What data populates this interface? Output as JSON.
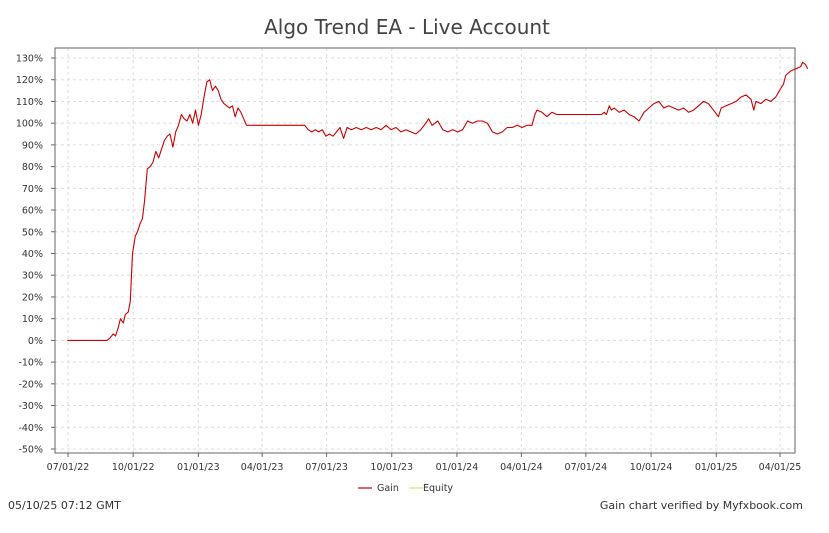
{
  "chart_data": {
    "type": "line",
    "title": "Algo Trend EA - Live Account",
    "xlabel": "",
    "ylabel": "",
    "ylim": [
      -50,
      130
    ],
    "y_ticks": [
      "130%",
      "120%",
      "110%",
      "100%",
      "90%",
      "80%",
      "70%",
      "60%",
      "50%",
      "40%",
      "30%",
      "20%",
      "10%",
      "0%",
      "-10%",
      "-20%",
      "-30%",
      "-40%",
      "-50%"
    ],
    "x_ticks": [
      "07/01/22",
      "10/01/22",
      "01/01/23",
      "04/01/23",
      "07/01/23",
      "10/01/23",
      "01/01/24",
      "04/01/24",
      "07/01/24",
      "10/01/24",
      "01/01/25",
      "04/01/25"
    ],
    "grid": true,
    "legend_position": "bottom-center",
    "series": [
      {
        "name": "Gain",
        "color": "#cc0000",
        "points": [
          [
            "2022-06-30",
            0
          ],
          [
            "2022-08-25",
            0
          ],
          [
            "2022-08-29",
            1
          ],
          [
            "2022-09-03",
            3
          ],
          [
            "2022-09-06",
            2
          ],
          [
            "2022-09-10",
            6
          ],
          [
            "2022-09-13",
            10
          ],
          [
            "2022-09-17",
            8
          ],
          [
            "2022-09-20",
            12
          ],
          [
            "2022-09-24",
            13
          ],
          [
            "2022-09-27",
            18
          ],
          [
            "2022-09-30",
            40
          ],
          [
            "2022-10-04",
            48
          ],
          [
            "2022-10-07",
            50
          ],
          [
            "2022-10-11",
            54
          ],
          [
            "2022-10-14",
            56
          ],
          [
            "2022-10-17",
            64
          ],
          [
            "2022-10-21",
            79
          ],
          [
            "2022-10-25",
            80
          ],
          [
            "2022-10-29",
            82
          ],
          [
            "2022-11-02",
            87
          ],
          [
            "2022-11-06",
            84
          ],
          [
            "2022-11-10",
            88
          ],
          [
            "2022-11-14",
            92
          ],
          [
            "2022-11-18",
            94
          ],
          [
            "2022-11-22",
            95
          ],
          [
            "2022-11-26",
            89
          ],
          [
            "2022-11-30",
            96
          ],
          [
            "2022-12-04",
            99
          ],
          [
            "2022-12-08",
            104
          ],
          [
            "2022-12-12",
            102
          ],
          [
            "2022-12-16",
            101
          ],
          [
            "2022-12-20",
            104
          ],
          [
            "2022-12-24",
            100
          ],
          [
            "2022-12-28",
            106
          ],
          [
            "2023-01-01",
            99
          ],
          [
            "2023-01-05",
            104
          ],
          [
            "2023-01-09",
            112
          ],
          [
            "2023-01-13",
            119
          ],
          [
            "2023-01-17",
            120
          ],
          [
            "2023-01-21",
            115
          ],
          [
            "2023-01-25",
            117
          ],
          [
            "2023-01-29",
            115
          ],
          [
            "2023-02-02",
            111
          ],
          [
            "2023-02-06",
            109
          ],
          [
            "2023-02-10",
            108
          ],
          [
            "2023-02-14",
            107
          ],
          [
            "2023-02-18",
            108
          ],
          [
            "2023-02-22",
            103
          ],
          [
            "2023-02-26",
            107
          ],
          [
            "2023-03-02",
            105
          ],
          [
            "2023-03-06",
            102
          ],
          [
            "2023-03-10",
            99
          ],
          [
            "2023-03-14",
            99
          ],
          [
            "2023-05-31",
            99
          ],
          [
            "2023-06-05",
            97
          ],
          [
            "2023-06-10",
            96
          ],
          [
            "2023-06-15",
            97
          ],
          [
            "2023-06-20",
            96
          ],
          [
            "2023-06-25",
            97
          ],
          [
            "2023-06-30",
            94
          ],
          [
            "2023-07-05",
            95
          ],
          [
            "2023-07-10",
            94
          ],
          [
            "2023-07-15",
            96
          ],
          [
            "2023-07-20",
            98
          ],
          [
            "2023-07-25",
            93
          ],
          [
            "2023-07-30",
            98
          ],
          [
            "2023-08-05",
            97
          ],
          [
            "2023-08-12",
            98
          ],
          [
            "2023-08-19",
            97
          ],
          [
            "2023-08-26",
            98
          ],
          [
            "2023-09-02",
            97
          ],
          [
            "2023-09-09",
            98
          ],
          [
            "2023-09-16",
            97
          ],
          [
            "2023-09-23",
            99
          ],
          [
            "2023-09-30",
            97
          ],
          [
            "2023-10-07",
            98
          ],
          [
            "2023-10-14",
            96
          ],
          [
            "2023-10-21",
            97
          ],
          [
            "2023-10-28",
            96
          ],
          [
            "2023-11-04",
            95
          ],
          [
            "2023-11-11",
            97
          ],
          [
            "2023-11-18",
            100
          ],
          [
            "2023-11-22",
            102
          ],
          [
            "2023-11-27",
            99
          ],
          [
            "2023-12-05",
            101
          ],
          [
            "2023-12-12",
            97
          ],
          [
            "2023-12-19",
            96
          ],
          [
            "2023-12-26",
            97
          ],
          [
            "2024-01-02",
            96
          ],
          [
            "2024-01-09",
            97
          ],
          [
            "2024-01-16",
            101
          ],
          [
            "2024-01-23",
            100
          ],
          [
            "2024-01-30",
            101
          ],
          [
            "2024-02-06",
            101
          ],
          [
            "2024-02-13",
            100
          ],
          [
            "2024-02-20",
            96
          ],
          [
            "2024-02-27",
            95
          ],
          [
            "2024-03-05",
            96
          ],
          [
            "2024-03-12",
            98
          ],
          [
            "2024-03-19",
            98
          ],
          [
            "2024-03-26",
            99
          ],
          [
            "2024-04-02",
            98
          ],
          [
            "2024-04-09",
            99
          ],
          [
            "2024-04-16",
            99
          ],
          [
            "2024-04-20",
            104
          ],
          [
            "2024-04-23",
            106
          ],
          [
            "2024-04-30",
            105
          ],
          [
            "2024-05-07",
            103
          ],
          [
            "2024-05-14",
            105
          ],
          [
            "2024-05-21",
            104
          ],
          [
            "2024-05-28",
            104
          ],
          [
            "2024-06-04",
            104
          ],
          [
            "2024-06-11",
            104
          ],
          [
            "2024-06-18",
            104
          ],
          [
            "2024-06-25",
            104
          ],
          [
            "2024-07-02",
            104
          ],
          [
            "2024-07-09",
            104
          ],
          [
            "2024-07-16",
            104
          ],
          [
            "2024-07-23",
            104
          ],
          [
            "2024-07-27",
            105
          ],
          [
            "2024-07-30",
            104
          ],
          [
            "2024-08-03",
            108
          ],
          [
            "2024-08-06",
            106
          ],
          [
            "2024-08-10",
            107
          ],
          [
            "2024-08-17",
            105
          ],
          [
            "2024-08-24",
            106
          ],
          [
            "2024-08-31",
            104
          ],
          [
            "2024-09-07",
            103
          ],
          [
            "2024-09-14",
            101
          ],
          [
            "2024-09-21",
            105
          ],
          [
            "2024-09-28",
            107
          ],
          [
            "2024-10-05",
            109
          ],
          [
            "2024-10-12",
            110
          ],
          [
            "2024-10-19",
            107
          ],
          [
            "2024-10-26",
            108
          ],
          [
            "2024-11-02",
            107
          ],
          [
            "2024-11-09",
            106
          ],
          [
            "2024-11-16",
            107
          ],
          [
            "2024-11-23",
            105
          ],
          [
            "2024-11-30",
            106
          ],
          [
            "2024-12-07",
            108
          ],
          [
            "2024-12-14",
            110
          ],
          [
            "2024-12-21",
            109
          ],
          [
            "2024-12-28",
            106
          ],
          [
            "2025-01-04",
            103
          ],
          [
            "2025-01-08",
            107
          ],
          [
            "2025-01-15",
            108
          ],
          [
            "2025-01-22",
            109
          ],
          [
            "2025-01-29",
            110
          ],
          [
            "2025-02-05",
            112
          ],
          [
            "2025-02-12",
            113
          ],
          [
            "2025-02-19",
            111
          ],
          [
            "2025-02-23",
            106
          ],
          [
            "2025-02-26",
            110
          ],
          [
            "2025-03-05",
            109
          ],
          [
            "2025-03-12",
            111
          ],
          [
            "2025-03-19",
            110
          ],
          [
            "2025-03-26",
            112
          ],
          [
            "2025-04-02",
            116
          ],
          [
            "2025-04-06",
            118
          ],
          [
            "2025-04-09",
            122
          ],
          [
            "2025-04-16",
            124
          ],
          [
            "2025-04-23",
            125
          ],
          [
            "2025-04-30",
            126
          ],
          [
            "2025-05-03",
            128
          ],
          [
            "2025-05-07",
            127
          ],
          [
            "2025-05-10",
            125
          ]
        ]
      },
      {
        "name": "Equity",
        "color": "#eedd66",
        "points": []
      }
    ]
  },
  "footer": {
    "timestamp": "05/10/25 07:12 GMT",
    "verified": "Gain chart verified by Myfxbook.com"
  }
}
